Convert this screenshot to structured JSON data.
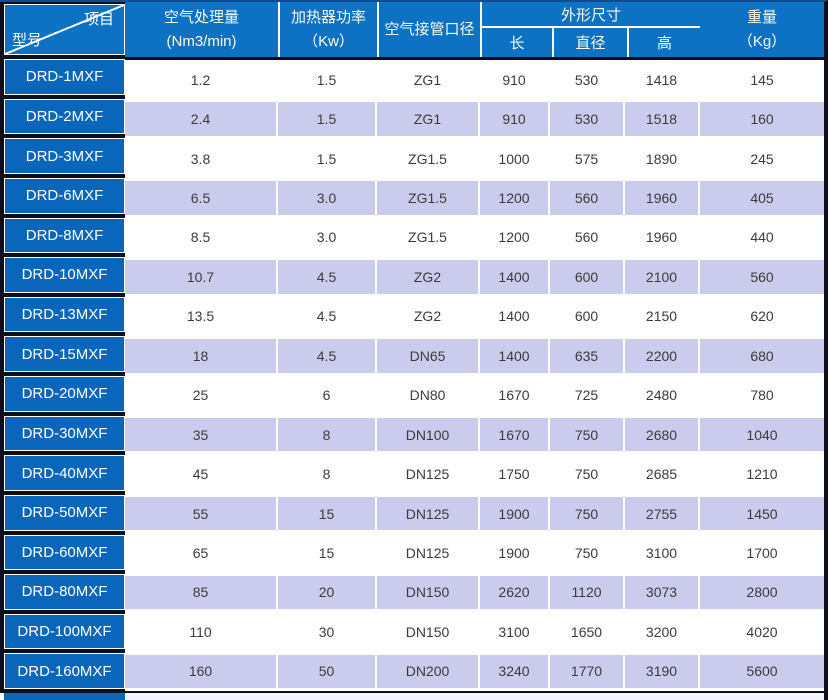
{
  "colors": {
    "header_blue": "#0d72c4",
    "model_cell_blue": "#0a66bb",
    "frame_dark": "#0d0e1c",
    "row_alt_lavender": "#cbcbee",
    "row_white": "#ffffff",
    "header_text": "#fcfae6",
    "data_text": "#3b3b3b"
  },
  "header": {
    "corner": {
      "top_right": "项目",
      "bottom_left": "型号"
    },
    "airflow": {
      "line1": "空气处理量",
      "line2": "(Nm3/min)"
    },
    "heater": {
      "line1": "加热器功率",
      "line2": "（Kw）"
    },
    "port": {
      "line1": "空气接管口径"
    },
    "dimensions": {
      "group": "外形尺寸",
      "sub_length": "长",
      "sub_diameter": "直径",
      "sub_height": "高"
    },
    "weight": {
      "line1": "重量",
      "line2": "（Kg）"
    }
  },
  "rows": [
    {
      "model": "DRD-1MXF",
      "airflow": "1.2",
      "heater": "1.5",
      "port": "ZG1",
      "length": "910",
      "diameter": "530",
      "height": "1418",
      "weight": "145"
    },
    {
      "model": "DRD-2MXF",
      "airflow": "2.4",
      "heater": "1.5",
      "port": "ZG1",
      "length": "910",
      "diameter": "530",
      "height": "1518",
      "weight": "160"
    },
    {
      "model": "DRD-3MXF",
      "airflow": "3.8",
      "heater": "1.5",
      "port": "ZG1.5",
      "length": "1000",
      "diameter": "575",
      "height": "1890",
      "weight": "245"
    },
    {
      "model": "DRD-6MXF",
      "airflow": "6.5",
      "heater": "3.0",
      "port": "ZG1.5",
      "length": "1200",
      "diameter": "560",
      "height": "1960",
      "weight": "405"
    },
    {
      "model": "DRD-8MXF",
      "airflow": "8.5",
      "heater": "3.0",
      "port": "ZG1.5",
      "length": "1200",
      "diameter": "560",
      "height": "1960",
      "weight": "440"
    },
    {
      "model": "DRD-10MXF",
      "airflow": "10.7",
      "heater": "4.5",
      "port": "ZG2",
      "length": "1400",
      "diameter": "600",
      "height": "2100",
      "weight": "560"
    },
    {
      "model": "DRD-13MXF",
      "airflow": "13.5",
      "heater": "4.5",
      "port": "ZG2",
      "length": "1400",
      "diameter": "600",
      "height": "2150",
      "weight": "620"
    },
    {
      "model": "DRD-15MXF",
      "airflow": "18",
      "heater": "4.5",
      "port": "DN65",
      "length": "1400",
      "diameter": "635",
      "height": "2200",
      "weight": "680"
    },
    {
      "model": "DRD-20MXF",
      "airflow": "25",
      "heater": "6",
      "port": "DN80",
      "length": "1670",
      "diameter": "725",
      "height": "2480",
      "weight": "780"
    },
    {
      "model": "DRD-30MXF",
      "airflow": "35",
      "heater": "8",
      "port": "DN100",
      "length": "1670",
      "diameter": "750",
      "height": "2680",
      "weight": "1040"
    },
    {
      "model": "DRD-40MXF",
      "airflow": "45",
      "heater": "8",
      "port": "DN125",
      "length": "1750",
      "diameter": "750",
      "height": "2685",
      "weight": "1210"
    },
    {
      "model": "DRD-50MXF",
      "airflow": "55",
      "heater": "15",
      "port": "DN125",
      "length": "1900",
      "diameter": "750",
      "height": "2755",
      "weight": "1450"
    },
    {
      "model": "DRD-60MXF",
      "airflow": "65",
      "heater": "15",
      "port": "DN125",
      "length": "1900",
      "diameter": "750",
      "height": "3100",
      "weight": "1700"
    },
    {
      "model": "DRD-80MXF",
      "airflow": "85",
      "heater": "20",
      "port": "DN150",
      "length": "2620",
      "diameter": "1120",
      "height": "3073",
      "weight": "2800"
    },
    {
      "model": "DRD-100MXF",
      "airflow": "110",
      "heater": "30",
      "port": "DN150",
      "length": "3100",
      "diameter": "1650",
      "height": "3200",
      "weight": "4020"
    },
    {
      "model": "DRD-160MXF",
      "airflow": "160",
      "heater": "50",
      "port": "DN200",
      "length": "3240",
      "diameter": "1770",
      "height": "3190",
      "weight": "5600"
    }
  ]
}
